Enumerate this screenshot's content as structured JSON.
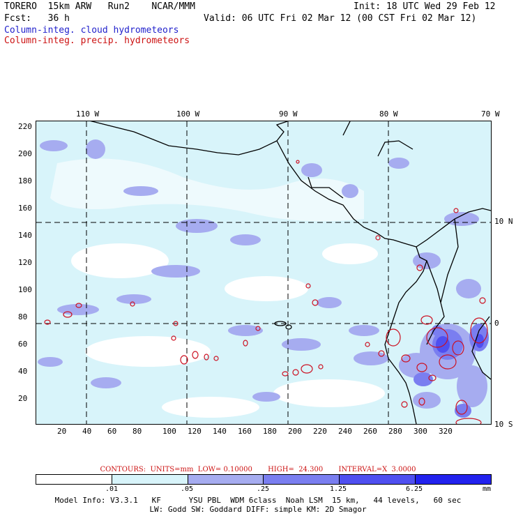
{
  "header": {
    "model": "TORERO  15km ARW   Run2    NCAR/MMM",
    "init": "Init: 18 UTC Wed 29 Feb 12",
    "fcst": "Fcst:   36 h",
    "valid": "Valid: 06 UTC Fri 02 Mar 12 (00 CST Fri 02 Mar 12)",
    "legend_cloud": "Column-integ. cloud hydrometeors",
    "legend_precip": "Column-integ. precip. hydrometeors"
  },
  "map": {
    "top_lon_labels": [
      "110 W",
      "100 W",
      "90 W",
      "80 W",
      "70 W"
    ],
    "right_lat_labels": [
      "10 N",
      "0",
      "10 S"
    ],
    "left_y_labels": [
      "220",
      "200",
      "180",
      "160",
      "140",
      "120",
      "100",
      "80",
      "60",
      "40",
      "20"
    ],
    "bottom_x_labels": [
      "20",
      "40",
      "60",
      "80",
      "100",
      "120",
      "140",
      "160",
      "180",
      "200",
      "220",
      "240",
      "260",
      "280",
      "300",
      "320"
    ],
    "colors": {
      "light": "#d8f4fa",
      "medium": "#a6acf0",
      "dark": "#7a7ef0",
      "precip_contour": "#cc1122",
      "grid": "#000000",
      "coast": "#000000"
    }
  },
  "contours_line": "CONTOURS:  UNITS=mm  LOW= 0.10000       HIGH=  24.300       INTERVAL=X  3.0000",
  "colorbar": {
    "colors": [
      "#ffffff",
      "#d8f4fa",
      "#a6acf0",
      "#7a7ef0",
      "#4f4ff0",
      "#2222ee"
    ],
    "ticks": [
      ".01",
      ".05",
      ".25",
      "1.25",
      "6.25"
    ],
    "unit": "mm"
  },
  "model_info": {
    "line1": "Model Info: V3.3.1   KF      YSU PBL  WDM 6class  Noah LSM  15 km,   44 levels,   60 sec",
    "line2": "LW: Godd SW: Goddard DIFF: simple KM: 2D Smagor"
  }
}
